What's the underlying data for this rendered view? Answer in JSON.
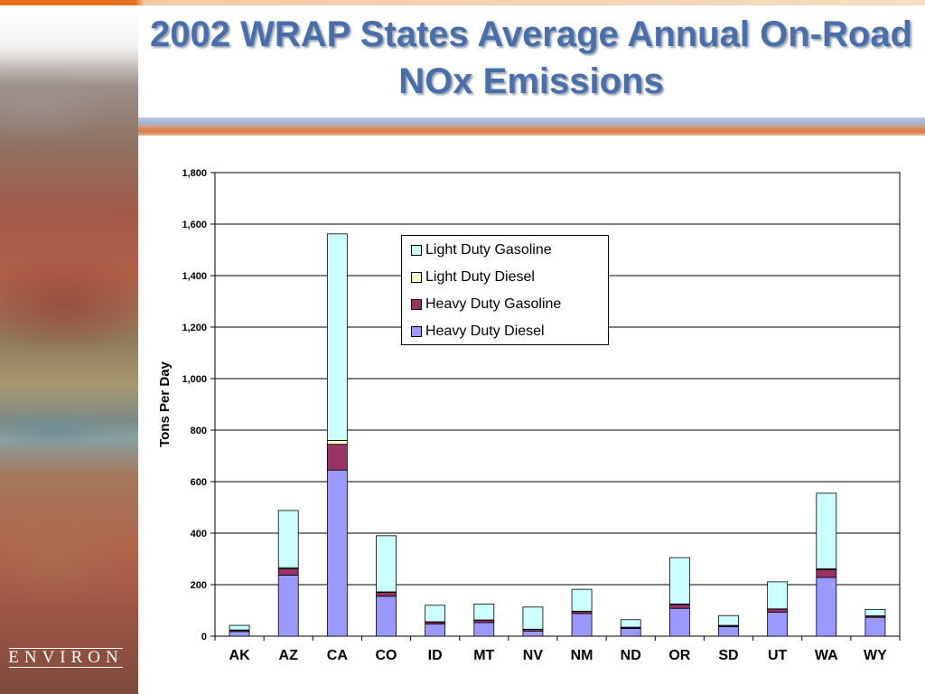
{
  "slide": {
    "title": "2002 WRAP States Average Annual On-Road NOx Emissions",
    "logo_text": "ENVIRON"
  },
  "chart_data": {
    "type": "bar",
    "stacked": true,
    "categories": [
      "AK",
      "AZ",
      "CA",
      "CO",
      "ID",
      "MT",
      "NV",
      "NM",
      "ND",
      "OR",
      "SD",
      "UT",
      "WA",
      "WY"
    ],
    "series": [
      {
        "name": "Heavy Duty Diesel",
        "color": "#9999ff",
        "values": [
          18,
          237,
          645,
          155,
          47,
          53,
          20,
          88,
          30,
          108,
          37,
          93,
          228,
          73
        ]
      },
      {
        "name": "Heavy Duty Gasoline",
        "color": "#993366",
        "values": [
          5,
          25,
          100,
          15,
          8,
          9,
          6,
          8,
          4,
          15,
          4,
          12,
          30,
          5
        ]
      },
      {
        "name": "Light Duty Diesel",
        "color": "#ffffcc",
        "values": [
          1,
          4,
          15,
          2,
          1,
          1,
          1,
          1,
          1,
          2,
          1,
          1,
          4,
          1
        ]
      },
      {
        "name": "Light Duty Gasoline",
        "color": "#ccffff",
        "values": [
          18,
          222,
          802,
          218,
          64,
          62,
          86,
          85,
          29,
          180,
          38,
          105,
          293,
          25
        ]
      }
    ],
    "legend_order": [
      "Light Duty Gasoline",
      "Light Duty Diesel",
      "Heavy Duty Gasoline",
      "Heavy Duty Diesel"
    ],
    "ylabel": "Tons Per Day",
    "xlabel": "",
    "ylim": [
      0,
      1800
    ],
    "yticks": [
      0,
      200,
      400,
      600,
      800,
      1000,
      1200,
      1400,
      1600,
      1800
    ],
    "ytick_labels": [
      "0",
      "200",
      "400",
      "600",
      "800",
      "1,000",
      "1,200",
      "1,400",
      "1,600",
      "1,800"
    ],
    "grid": true,
    "legend_position": "top-center"
  }
}
